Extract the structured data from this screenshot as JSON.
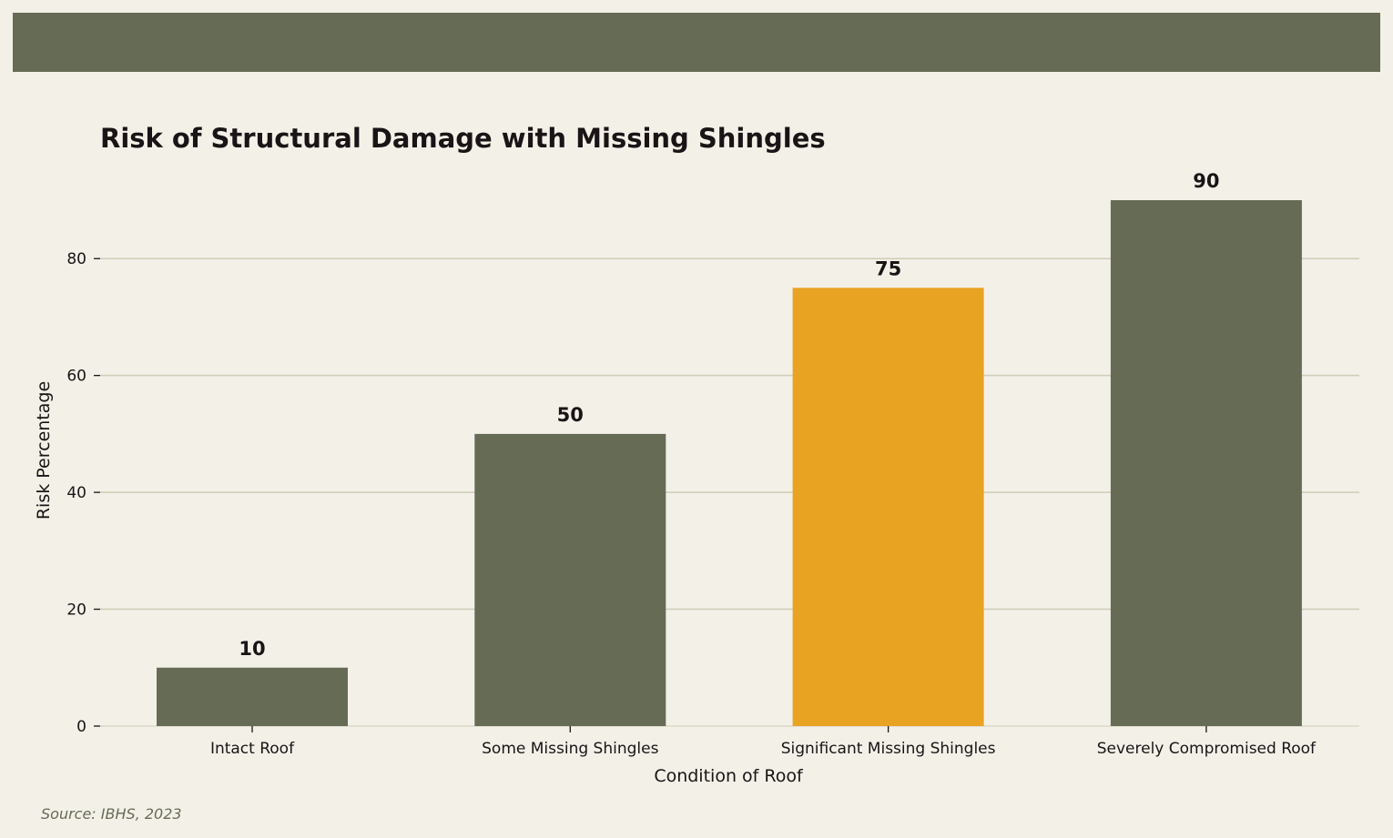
{
  "chart_data": {
    "type": "bar",
    "title": "Risk of Structural Damage with Missing Shingles",
    "xlabel": "Condition of Roof",
    "ylabel": "Risk Percentage",
    "categories": [
      "Intact Roof",
      "Some Missing Shingles",
      "Significant Missing Shingles",
      "Severely Compromised Roof"
    ],
    "values": [
      10,
      50,
      75,
      90
    ],
    "ylim": [
      0,
      90
    ],
    "yticks": [
      0,
      20,
      40,
      60,
      80
    ],
    "grid": "horizontal",
    "colors": {
      "bar": "#666b55",
      "highlight_bar": "#e8a323",
      "grid": "#cfcbb6",
      "text": "#1a1416"
    },
    "highlight_index": 2
  },
  "source": "Source: IBHS, 2023"
}
